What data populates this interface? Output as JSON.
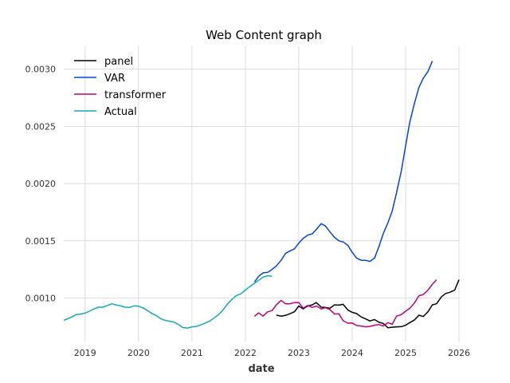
{
  "chart_data": {
    "type": "line",
    "title": "Web Content graph",
    "xlabel": "date",
    "ylabel": "",
    "xlim": [
      2018.6,
      2026.0
    ],
    "ylim": [
      0.00062,
      0.0032
    ],
    "x_ticks": [
      2019,
      2020,
      2021,
      2022,
      2023,
      2024,
      2025,
      2026
    ],
    "x_tick_labels": [
      "2019",
      "2020",
      "2021",
      "2022",
      "2023",
      "2024",
      "2025",
      "2026"
    ],
    "y_ticks": [
      0.001,
      0.0015,
      0.002,
      0.0025,
      0.003
    ],
    "y_tick_labels": [
      "0.0010",
      "0.0015",
      "0.0020",
      "0.0025",
      "0.0030"
    ],
    "grid": true,
    "legend_position": "top-left",
    "series": [
      {
        "name": "panel",
        "color": "#000000",
        "points": [
          [
            2022.58,
            0.00085
          ],
          [
            2022.67,
            0.000842
          ],
          [
            2022.75,
            0.000848
          ],
          [
            2022.83,
            0.000862
          ],
          [
            2022.92,
            0.00088
          ],
          [
            2023.0,
            0.00093
          ],
          [
            2023.08,
            0.000905
          ],
          [
            2023.17,
            0.00093
          ],
          [
            2023.25,
            0.00094
          ],
          [
            2023.33,
            0.00096
          ],
          [
            2023.42,
            0.00092
          ],
          [
            2023.5,
            0.000918
          ],
          [
            2023.58,
            0.00091
          ],
          [
            2023.67,
            0.00094
          ],
          [
            2023.75,
            0.000938
          ],
          [
            2023.83,
            0.000945
          ],
          [
            2023.92,
            0.000895
          ],
          [
            2024.0,
            0.000875
          ],
          [
            2024.08,
            0.000865
          ],
          [
            2024.17,
            0.000835
          ],
          [
            2024.25,
            0.000818
          ],
          [
            2024.33,
            0.0008
          ],
          [
            2024.42,
            0.000812
          ],
          [
            2024.5,
            0.000788
          ],
          [
            2024.58,
            0.000778
          ],
          [
            2024.67,
            0.00074
          ],
          [
            2024.75,
            0.000745
          ],
          [
            2024.83,
            0.000748
          ],
          [
            2024.92,
            0.00075
          ],
          [
            2025.0,
            0.000762
          ],
          [
            2025.08,
            0.000785
          ],
          [
            2025.17,
            0.00081
          ],
          [
            2025.25,
            0.00085
          ],
          [
            2025.33,
            0.000838
          ],
          [
            2025.42,
            0.00088
          ],
          [
            2025.5,
            0.00094
          ],
          [
            2025.58,
            0.00095
          ],
          [
            2025.67,
            0.00101
          ],
          [
            2025.75,
            0.00104
          ],
          [
            2025.83,
            0.00105
          ],
          [
            2025.92,
            0.00107
          ],
          [
            2026.0,
            0.00116
          ]
        ]
      },
      {
        "name": "VAR",
        "color": "#0343df",
        "points": [
          [
            2022.17,
            0.00114
          ],
          [
            2022.25,
            0.00119
          ],
          [
            2022.33,
            0.00122
          ],
          [
            2022.42,
            0.001225
          ],
          [
            2022.5,
            0.00125
          ],
          [
            2022.58,
            0.00128
          ],
          [
            2022.67,
            0.00133
          ],
          [
            2022.75,
            0.00139
          ],
          [
            2022.83,
            0.00141
          ],
          [
            2022.92,
            0.00143
          ],
          [
            2023.0,
            0.00148
          ],
          [
            2023.08,
            0.00152
          ],
          [
            2023.17,
            0.00155
          ],
          [
            2023.25,
            0.00156
          ],
          [
            2023.33,
            0.0016
          ],
          [
            2023.42,
            0.00165
          ],
          [
            2023.5,
            0.00163
          ],
          [
            2023.58,
            0.00158
          ],
          [
            2023.67,
            0.00153
          ],
          [
            2023.75,
            0.0015
          ],
          [
            2023.83,
            0.00149
          ],
          [
            2023.92,
            0.00146
          ],
          [
            2024.0,
            0.0014
          ],
          [
            2024.08,
            0.00135
          ],
          [
            2024.17,
            0.00133
          ],
          [
            2024.25,
            0.00133
          ],
          [
            2024.33,
            0.00132
          ],
          [
            2024.42,
            0.00135
          ],
          [
            2024.5,
            0.00145
          ],
          [
            2024.58,
            0.00156
          ],
          [
            2024.67,
            0.00166
          ],
          [
            2024.75,
            0.00176
          ],
          [
            2024.83,
            0.00192
          ],
          [
            2024.92,
            0.00211
          ],
          [
            2025.0,
            0.00233
          ],
          [
            2025.08,
            0.00254
          ],
          [
            2025.17,
            0.00271
          ],
          [
            2025.25,
            0.00284
          ],
          [
            2025.33,
            0.00292
          ],
          [
            2025.42,
            0.00298
          ],
          [
            2025.5,
            0.00307
          ]
        ]
      },
      {
        "name": "transformer",
        "color": "#c20078",
        "points": [
          [
            2022.17,
            0.00084
          ],
          [
            2022.25,
            0.00087
          ],
          [
            2022.33,
            0.000842
          ],
          [
            2022.42,
            0.00088
          ],
          [
            2022.5,
            0.00089
          ],
          [
            2022.58,
            0.00094
          ],
          [
            2022.67,
            0.00098
          ],
          [
            2022.75,
            0.00095
          ],
          [
            2022.83,
            0.00095
          ],
          [
            2022.92,
            0.00096
          ],
          [
            2023.0,
            0.00096
          ],
          [
            2023.08,
            0.000912
          ],
          [
            2023.17,
            0.000935
          ],
          [
            2023.25,
            0.000918
          ],
          [
            2023.33,
            0.00093
          ],
          [
            2023.42,
            0.000905
          ],
          [
            2023.5,
            0.000915
          ],
          [
            2023.58,
            0.0009
          ],
          [
            2023.67,
            0.00086
          ],
          [
            2023.75,
            0.000862
          ],
          [
            2023.83,
            0.000802
          ],
          [
            2023.92,
            0.00078
          ],
          [
            2024.0,
            0.000782
          ],
          [
            2024.08,
            0.00076
          ],
          [
            2024.17,
            0.000755
          ],
          [
            2024.25,
            0.000748
          ],
          [
            2024.33,
            0.000752
          ],
          [
            2024.42,
            0.000762
          ],
          [
            2024.5,
            0.000768
          ],
          [
            2024.58,
            0.000755
          ],
          [
            2024.67,
            0.000785
          ],
          [
            2024.75,
            0.00077
          ],
          [
            2024.83,
            0.000842
          ],
          [
            2024.92,
            0.000855
          ],
          [
            2025.0,
            0.000885
          ],
          [
            2025.08,
            0.00091
          ],
          [
            2025.17,
            0.00096
          ],
          [
            2025.25,
            0.00102
          ],
          [
            2025.33,
            0.00103
          ],
          [
            2025.42,
            0.00107
          ],
          [
            2025.5,
            0.00112
          ],
          [
            2025.58,
            0.00116
          ]
        ]
      },
      {
        "name": "Actual",
        "color": "#13aab5",
        "points": [
          [
            2018.6,
            0.000805
          ],
          [
            2018.75,
            0.000835
          ],
          [
            2018.83,
            0.000855
          ],
          [
            2018.92,
            0.00086
          ],
          [
            2019.0,
            0.000868
          ],
          [
            2019.08,
            0.000885
          ],
          [
            2019.17,
            0.000905
          ],
          [
            2019.25,
            0.00092
          ],
          [
            2019.33,
            0.00092
          ],
          [
            2019.42,
            0.000935
          ],
          [
            2019.5,
            0.00095
          ],
          [
            2019.58,
            0.00094
          ],
          [
            2019.67,
            0.00093
          ],
          [
            2019.75,
            0.00092
          ],
          [
            2019.83,
            0.000918
          ],
          [
            2019.92,
            0.000932
          ],
          [
            2020.0,
            0.000928
          ],
          [
            2020.08,
            0.000915
          ],
          [
            2020.17,
            0.00089
          ],
          [
            2020.25,
            0.000865
          ],
          [
            2020.33,
            0.000848
          ],
          [
            2020.42,
            0.000818
          ],
          [
            2020.5,
            0.000805
          ],
          [
            2020.58,
            0.000798
          ],
          [
            2020.67,
            0.000788
          ],
          [
            2020.75,
            0.000768
          ],
          [
            2020.83,
            0.000742
          ],
          [
            2020.92,
            0.000738
          ],
          [
            2021.0,
            0.000748
          ],
          [
            2021.08,
            0.000752
          ],
          [
            2021.17,
            0.000765
          ],
          [
            2021.25,
            0.000782
          ],
          [
            2021.33,
            0.000798
          ],
          [
            2021.42,
            0.000828
          ],
          [
            2021.5,
            0.000855
          ],
          [
            2021.58,
            0.000895
          ],
          [
            2021.67,
            0.00095
          ],
          [
            2021.75,
            0.000988
          ],
          [
            2021.83,
            0.00102
          ],
          [
            2021.92,
            0.001038
          ],
          [
            2022.0,
            0.00107
          ],
          [
            2022.08,
            0.0011
          ],
          [
            2022.17,
            0.001128
          ],
          [
            2022.25,
            0.001155
          ],
          [
            2022.33,
            0.001182
          ],
          [
            2022.42,
            0.001195
          ],
          [
            2022.5,
            0.00119
          ]
        ]
      }
    ]
  }
}
